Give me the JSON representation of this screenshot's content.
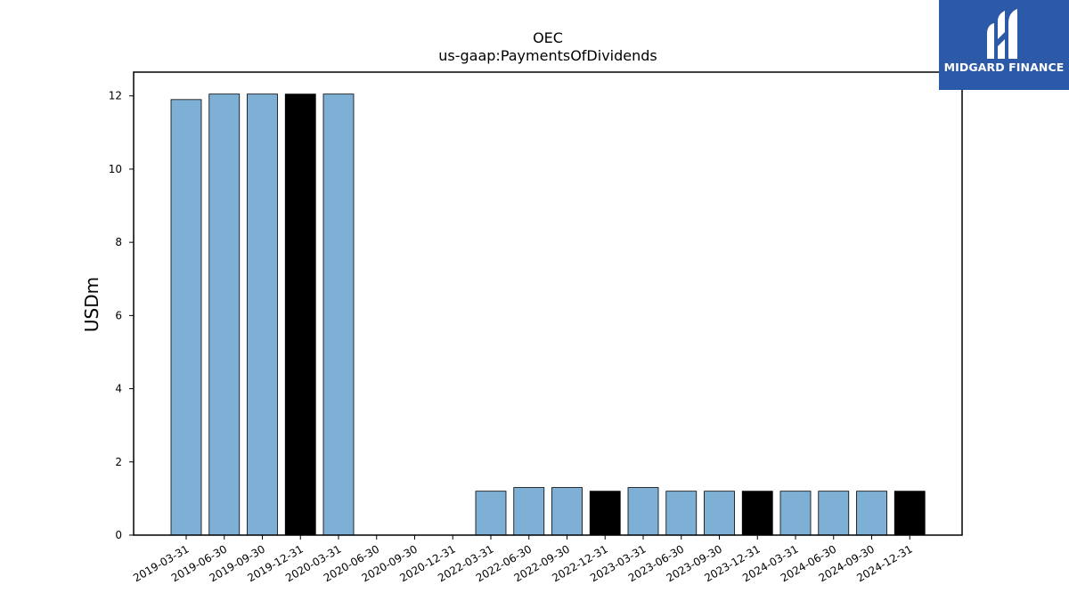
{
  "chart_data": {
    "type": "bar",
    "title": "OEC",
    "subtitle": "us-gaap:PaymentsOfDividends",
    "ylabel": "USDm",
    "xlabel": "",
    "ylim": [
      0,
      12.65
    ],
    "yticks": [
      0,
      2,
      4,
      6,
      8,
      10,
      12
    ],
    "categories": [
      "2019-03-31",
      "2019-06-30",
      "2019-09-30",
      "2019-12-31",
      "2020-03-31",
      "2020-06-30",
      "2020-09-30",
      "2020-12-31",
      "2022-03-31",
      "2022-06-30",
      "2022-09-30",
      "2022-12-31",
      "2023-03-31",
      "2023-06-30",
      "2023-09-30",
      "2023-12-31",
      "2024-03-31",
      "2024-06-30",
      "2024-09-30",
      "2024-12-31"
    ],
    "values": [
      11.9,
      12.05,
      12.05,
      12.05,
      12.05,
      0,
      0,
      0,
      1.2,
      1.3,
      1.3,
      1.2,
      1.3,
      1.2,
      1.2,
      1.2,
      1.2,
      1.2,
      1.2,
      1.2
    ],
    "highlight": [
      false,
      false,
      false,
      true,
      false,
      false,
      false,
      false,
      false,
      false,
      false,
      true,
      false,
      false,
      false,
      true,
      false,
      false,
      false,
      true
    ],
    "colors": {
      "bar": "#7eb0d5",
      "highlight": "#000000",
      "edge": "#000000"
    },
    "grid": false
  },
  "logo": {
    "text": "MIDGARD FINANCE",
    "background": "#2d5aa8"
  }
}
